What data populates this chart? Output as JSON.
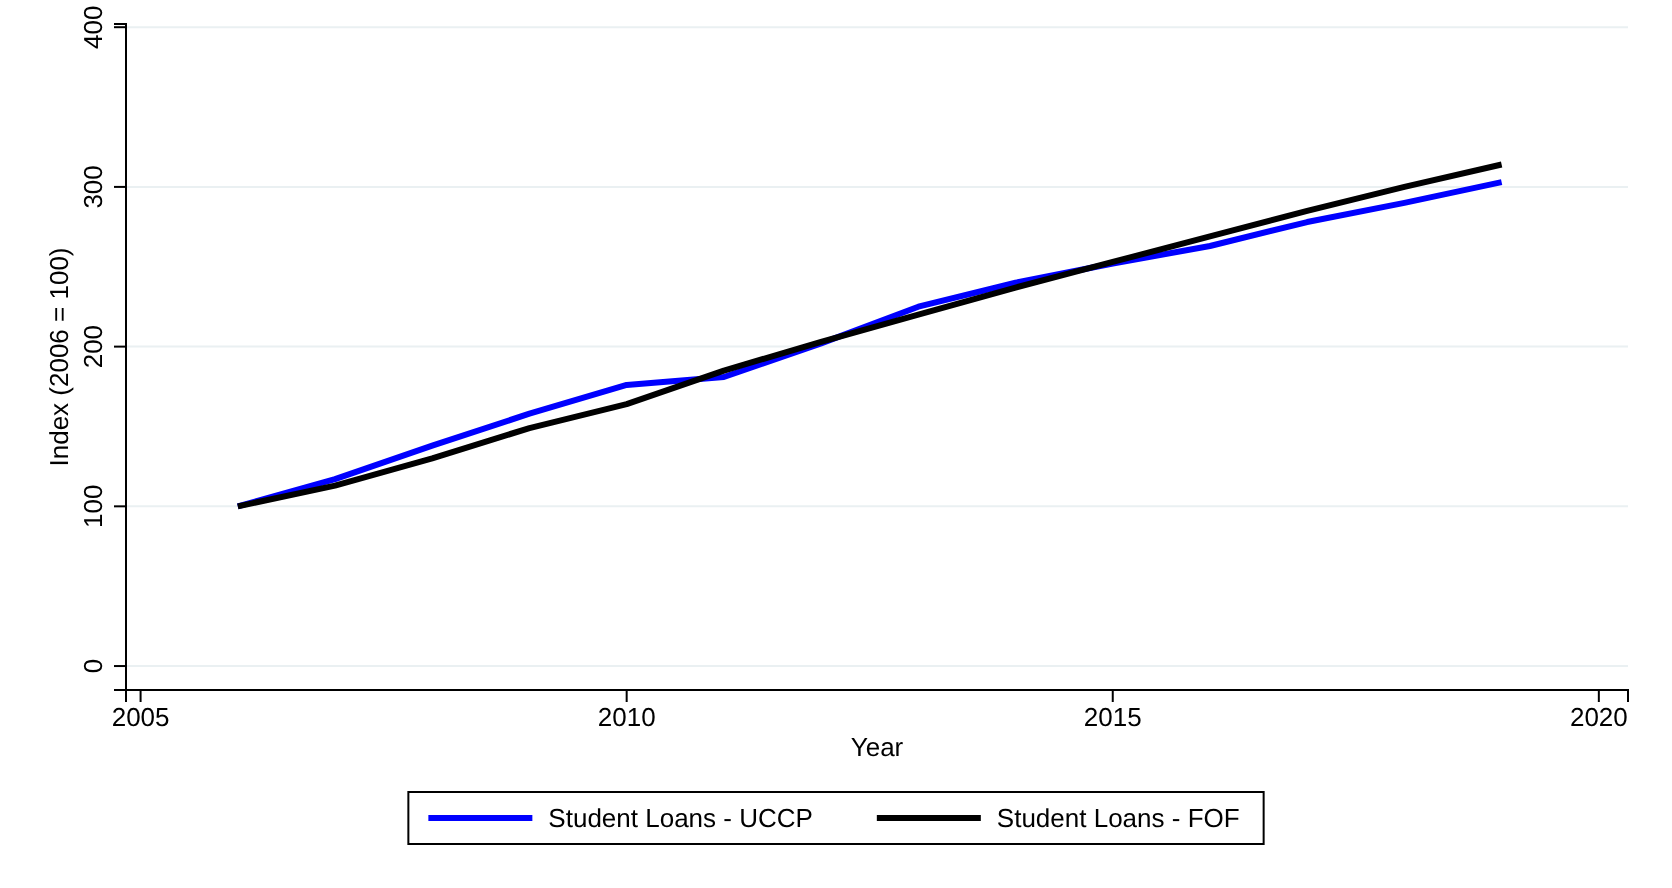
{
  "chart_data": {
    "type": "line",
    "xlabel": "Year",
    "ylabel": "Index (2006 = 100)",
    "x": [
      2006,
      2007,
      2008,
      2009,
      2010,
      2011,
      2012,
      2013,
      2014,
      2015,
      2016,
      2017,
      2018,
      2019
    ],
    "series": [
      {
        "name": "Student Loans - UCCP",
        "color": "#0000ff",
        "values": [
          100,
          117,
          138,
          158,
          176,
          181,
          202,
          225,
          240,
          252,
          263,
          278,
          290,
          303
        ]
      },
      {
        "name": "Student Loans - FOF",
        "color": "#000000",
        "values": [
          100,
          113,
          130,
          149,
          164,
          185,
          203,
          220,
          237,
          253,
          269,
          285,
          300,
          314
        ]
      }
    ],
    "xlim": [
      2004.85,
      2020.3
    ],
    "xticks": [
      2005,
      2010,
      2015,
      2020
    ],
    "ylim": [
      -15,
      402
    ],
    "yticks": [
      0,
      100,
      200,
      300,
      400
    ],
    "grid": "y",
    "legend": "bottom",
    "marker": "none",
    "line_style": "solid"
  }
}
